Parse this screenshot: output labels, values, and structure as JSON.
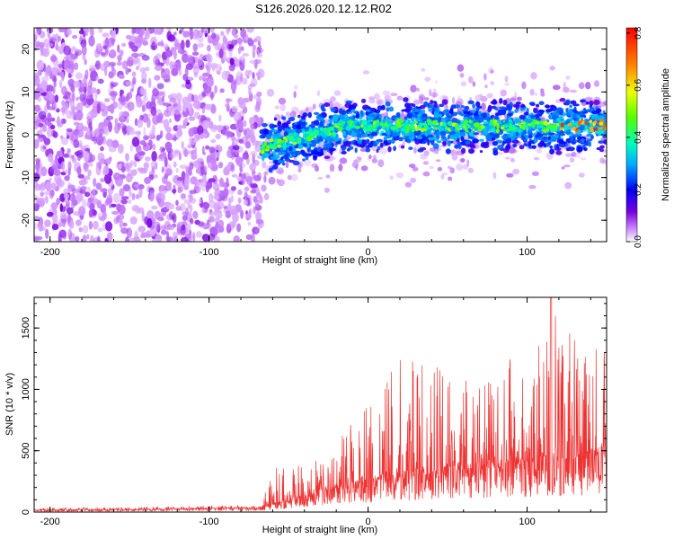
{
  "figure": {
    "title": "S126.2026.020.12.12.R02"
  },
  "chart_data": [
    {
      "type": "heatmap",
      "title": "",
      "xlabel": "Height of straight line (km)",
      "ylabel": "Frequency (Hz)",
      "xlim": [
        -210,
        150
      ],
      "ylim": [
        -25,
        25
      ],
      "x_ticks": [
        -200,
        -100,
        0,
        100
      ],
      "y_ticks": [
        -20,
        -10,
        0,
        10,
        20
      ],
      "colorbar": {
        "label": "Normalized spectral amplitude",
        "range": [
          0,
          0.82
        ],
        "ticks": [
          "0.0",
          "0.2",
          "0.4",
          "0.6",
          "0.8"
        ]
      },
      "regions": [
        {
          "x_range": [
            -210,
            -67
          ],
          "description_value": "broadband noise across all frequencies, amplitude 0.0-0.1"
        },
        {
          "x_range": [
            -67,
            150
          ],
          "center_frequency_start": -3,
          "center_frequency_end": 2,
          "band_halfwidth": 4,
          "peak_amplitude": 0.8
        }
      ],
      "grid": false
    },
    {
      "type": "line",
      "title": "",
      "xlabel": "Height of straight line (km)",
      "ylabel": "SNR (10 * v/v)",
      "xlim": [
        -210,
        150
      ],
      "ylim": [
        0,
        1750
      ],
      "x_ticks": [
        -200,
        -100,
        0,
        100
      ],
      "y_ticks": [
        0,
        500,
        1000,
        1500
      ],
      "series_color": "#ee3333",
      "envelope": {
        "x": [
          -210,
          -150,
          -100,
          -67,
          -60,
          -40,
          -20,
          0,
          20,
          40,
          60,
          80,
          100,
          115,
          130,
          150
        ],
        "baseline": [
          15,
          20,
          30,
          35,
          60,
          120,
          200,
          250,
          280,
          320,
          350,
          380,
          400,
          420,
          430,
          450
        ],
        "peak": [
          35,
          40,
          55,
          60,
          360,
          380,
          600,
          900,
          1280,
          1200,
          1250,
          1200,
          1300,
          1750,
          1400,
          1300
        ]
      },
      "grid": false
    }
  ]
}
